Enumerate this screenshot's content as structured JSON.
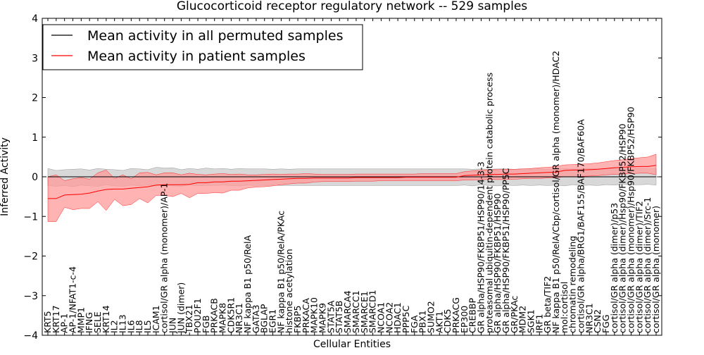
{
  "chart_data": {
    "type": "line",
    "title": "Glucocorticoid receptor regulatory network -- 529 samples",
    "xlabel": "Cellular Entities",
    "ylabel": "Inferred Activity",
    "ylim": [
      -4,
      4
    ],
    "yticks": [
      "−4",
      "−3",
      "−2",
      "−1",
      "0",
      "1",
      "2",
      "3",
      "4"
    ],
    "legend": {
      "placement": "top-left",
      "entries": [
        {
          "label": "Mean activity in all permuted samples",
          "color": "#000000"
        },
        {
          "label": "Mean activity in patient samples",
          "color": "#ff0000"
        }
      ]
    },
    "colors": {
      "patient_line": "#ff0000",
      "patient_band": "#ff9999",
      "permuted_line": "#000000",
      "permuted_band": "#c8c8c8"
    },
    "categories": [
      "KRT5",
      "KRT17",
      "AP-1",
      "AP-1/NFAT1-c-4",
      "MMP1",
      "IFNG",
      "SELE",
      "KRT14",
      "IL2",
      "IL13",
      "IL6",
      "IL8",
      "IL5",
      "ICAM1",
      "cortisol/GR alpha (monomer)/AP-1",
      "JUN",
      "JUN (dimer)",
      "TBX21",
      "POU2F1",
      "FGB",
      "PRKACB",
      "MAPK8",
      "CDK5R1",
      "NR3C1",
      "NF kappa B1 p50/RelA",
      "GATA3",
      "BGLAP",
      "EGR1",
      "NF kappa B1 p50/RelA/PKAc",
      "histone acetylation",
      "FKBP5",
      "PRKACA",
      "MAPK10",
      "MAPK9",
      "STAT5A",
      "STAT5B",
      "SMARCA4",
      "SMARCC1",
      "SMARCE1",
      "SMARCD1",
      "NCOA1",
      "NCOA2",
      "HDAC1",
      "PPP5C",
      "FGA",
      "PBX1",
      "SUMO2",
      "AKT1",
      "CDK5",
      "PRKACG",
      "EP300",
      "CREBBP",
      "GR alpha/HSP90/FKBP51/HSP90/14-3-3",
      "proteasomal ubiquitin-dependent protein catabolic process",
      "GR alpha/HSP90/FKBP51/HSP90",
      "GR alpha/HSP90/FKBP51/HSP90/PP5C",
      "GR/PKAc",
      "MDM2",
      "SGK1",
      "IRF1",
      "GR beta/TIF2",
      "NF kappa B1 p50/RelA/Cbp/cortisol/GR alpha (monomer)/HDAC2",
      "mol:cortisol",
      "chromatin remodeling",
      "cortisol/GR alpha/BRG1/BAF155/BAF170/BAF60A",
      "NR3C1",
      "CSN2",
      "FGG",
      "cortisol/GR alpha (dimer)/p53",
      "cortisol/GR alpha (dimer)/Hsp90/FKBP52/HSP90",
      "cortisol/GR alpha (monomer)/Hsp90/FKBP52/HSP90",
      "cortisol/GR alpha (dimer)/TIF2",
      "cortisol/GR alpha (dimer)/Src-1",
      "cortisol/GR alpha (monomer)"
    ],
    "series": [
      {
        "name": "Mean activity in patient samples",
        "values": [
          -0.55,
          -0.55,
          -0.46,
          -0.45,
          -0.44,
          -0.41,
          -0.36,
          -0.32,
          -0.31,
          -0.31,
          -0.29,
          -0.27,
          -0.25,
          -0.21,
          -0.2,
          -0.2,
          -0.2,
          -0.19,
          -0.15,
          -0.15,
          -0.13,
          -0.13,
          -0.11,
          -0.11,
          -0.1,
          -0.09,
          -0.08,
          -0.07,
          -0.06,
          -0.05,
          -0.04,
          -0.04,
          -0.03,
          -0.03,
          -0.03,
          -0.03,
          -0.03,
          -0.02,
          -0.02,
          -0.02,
          -0.02,
          -0.02,
          -0.02,
          -0.01,
          -0.01,
          -0.01,
          -0.01,
          -0.01,
          -0.01,
          -0.01,
          0.03,
          0.04,
          0.05,
          0.06,
          0.06,
          0.07,
          0.07,
          0.08,
          0.09,
          0.1,
          0.11,
          0.12,
          0.16,
          0.17,
          0.17,
          0.18,
          0.19,
          0.21,
          0.23,
          0.24,
          0.25,
          0.26,
          0.26,
          0.29
        ],
        "band_low": [
          -1.13,
          -1.13,
          -0.77,
          -0.83,
          -0.8,
          -0.8,
          -0.63,
          -0.85,
          -0.57,
          -0.73,
          -0.7,
          -0.55,
          -0.66,
          -0.47,
          -0.47,
          -0.5,
          -0.42,
          -0.53,
          -0.42,
          -0.42,
          -0.4,
          -0.41,
          -0.34,
          -0.34,
          -0.28,
          -0.26,
          -0.25,
          -0.23,
          -0.2,
          -0.18,
          -0.16,
          -0.16,
          -0.13,
          -0.12,
          -0.12,
          -0.12,
          -0.12,
          -0.11,
          -0.11,
          -0.11,
          -0.1,
          -0.1,
          -0.1,
          -0.1,
          -0.1,
          -0.1,
          -0.1,
          -0.1,
          -0.1,
          -0.1,
          -0.08,
          -0.08,
          -0.07,
          -0.07,
          -0.07,
          -0.07,
          -0.06,
          -0.05,
          -0.04,
          -0.04,
          -0.03,
          -0.02,
          0.0,
          0.0,
          0.01,
          0.02,
          0.03,
          0.05,
          0.06,
          0.07,
          0.08,
          0.09,
          0.09,
          0.05
        ],
        "band_high": [
          0.0,
          0.05,
          -0.1,
          -0.05,
          -0.02,
          -0.06,
          0.1,
          0.17,
          -0.04,
          0.05,
          -0.05,
          0.1,
          0.11,
          0.05,
          0.1,
          0.1,
          0.05,
          0.09,
          0.06,
          0.05,
          0.07,
          0.08,
          0.06,
          0.07,
          0.05,
          0.05,
          0.06,
          0.07,
          0.06,
          0.07,
          0.07,
          0.08,
          0.07,
          0.06,
          0.06,
          0.06,
          0.06,
          0.07,
          0.07,
          0.07,
          0.07,
          0.07,
          0.07,
          0.07,
          0.07,
          0.08,
          0.08,
          0.08,
          0.08,
          0.08,
          0.13,
          0.15,
          0.17,
          0.18,
          0.18,
          0.19,
          0.19,
          0.2,
          0.21,
          0.23,
          0.24,
          0.26,
          0.3,
          0.31,
          0.32,
          0.33,
          0.35,
          0.38,
          0.41,
          0.43,
          0.46,
          0.48,
          0.5,
          0.57
        ]
      },
      {
        "name": "Mean activity in all permuted samples",
        "values": [
          0.0,
          0.0,
          0.0,
          0.0,
          0.0,
          0.0,
          0.0,
          0.0,
          0.0,
          0.0,
          0.0,
          0.0,
          0.0,
          0.0,
          0.0,
          0.0,
          0.0,
          0.0,
          0.0,
          0.0,
          0.0,
          0.0,
          0.0,
          0.0,
          0.0,
          0.0,
          0.0,
          0.0,
          0.0,
          0.0,
          0.0,
          0.0,
          0.0,
          0.0,
          0.0,
          0.0,
          0.0,
          0.0,
          0.0,
          0.0,
          0.0,
          0.0,
          0.0,
          0.0,
          0.0,
          0.0,
          0.0,
          0.0,
          0.0,
          0.0,
          0.0,
          0.0,
          0.0,
          0.0,
          0.0,
          0.0,
          0.0,
          0.0,
          0.0,
          0.0,
          0.0,
          0.0,
          0.0,
          0.0,
          0.0,
          0.0,
          0.0,
          0.0,
          0.0,
          0.0,
          0.0,
          0.0,
          0.0,
          0.0
        ],
        "band_low": [
          -0.22,
          -0.24,
          -0.22,
          -0.25,
          -0.21,
          -0.23,
          -0.24,
          -0.2,
          -0.23,
          -0.24,
          -0.21,
          -0.23,
          -0.21,
          -0.22,
          -0.22,
          -0.23,
          -0.24,
          -0.21,
          -0.23,
          -0.22,
          -0.22,
          -0.21,
          -0.22,
          -0.23,
          -0.21,
          -0.22,
          -0.22,
          -0.21,
          -0.22,
          -0.22,
          -0.22,
          -0.22,
          -0.22,
          -0.22,
          -0.22,
          -0.22,
          -0.22,
          -0.22,
          -0.22,
          -0.22,
          -0.22,
          -0.22,
          -0.22,
          -0.22,
          -0.22,
          -0.22,
          -0.22,
          -0.22,
          -0.22,
          -0.22,
          -0.21,
          -0.23,
          -0.2,
          -0.22,
          -0.23,
          -0.21,
          -0.22,
          -0.21,
          -0.22,
          -0.21,
          -0.22,
          -0.21,
          -0.23,
          -0.2,
          -0.22,
          -0.21,
          -0.22,
          -0.2,
          -0.21,
          -0.19,
          -0.2,
          -0.2,
          -0.19,
          -0.21
        ],
        "band_high": [
          0.21,
          0.16,
          0.18,
          0.19,
          0.2,
          0.17,
          0.21,
          0.19,
          0.18,
          0.16,
          0.21,
          0.2,
          0.18,
          0.24,
          0.22,
          0.23,
          0.18,
          0.21,
          0.19,
          0.22,
          0.2,
          0.21,
          0.19,
          0.21,
          0.2,
          0.2,
          0.2,
          0.19,
          0.2,
          0.19,
          0.2,
          0.2,
          0.2,
          0.2,
          0.2,
          0.2,
          0.2,
          0.2,
          0.2,
          0.2,
          0.2,
          0.2,
          0.2,
          0.2,
          0.2,
          0.2,
          0.2,
          0.2,
          0.2,
          0.2,
          0.2,
          0.19,
          0.2,
          0.19,
          0.2,
          0.2,
          0.19,
          0.2,
          0.2,
          0.2,
          0.19,
          0.2,
          0.21,
          0.2,
          0.2,
          0.21,
          0.2,
          0.21,
          0.2,
          0.21,
          0.2,
          0.22,
          0.2,
          0.21
        ]
      }
    ]
  }
}
